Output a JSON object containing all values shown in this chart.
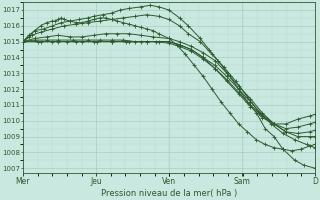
{
  "bg_color": "#c8e8e0",
  "grid_color_major": "#a0c8bc",
  "grid_color_minor": "#b8d8d0",
  "line_color": "#2d5a2d",
  "marker_color": "#2d5a2d",
  "ylabel_ticks": [
    1007,
    1008,
    1009,
    1010,
    1011,
    1012,
    1013,
    1014,
    1015,
    1016,
    1017
  ],
  "ylim": [
    1006.7,
    1017.5
  ],
  "xlim": [
    0.0,
    4.95
  ],
  "xlabel": "Pression niveau de la mer( hPa )",
  "xtick_labels": [
    "Mer",
    "Jeu",
    "Ven",
    "Sam",
    "D"
  ],
  "xtick_positions": [
    0.0,
    1.24,
    2.47,
    3.71,
    4.94
  ],
  "series": [
    {
      "x": [
        0.0,
        0.1,
        0.2,
        0.35,
        0.5,
        0.65,
        0.8,
        0.95,
        1.1,
        1.2,
        1.35,
        1.5,
        1.65,
        1.8,
        2.0,
        2.15,
        2.3,
        2.47,
        2.65,
        2.8,
        3.0,
        3.15,
        3.3,
        3.5,
        3.65,
        3.8,
        3.95,
        4.1,
        4.25,
        4.4,
        4.6,
        4.75,
        4.94
      ],
      "y": [
        1015.0,
        1015.3,
        1015.7,
        1015.8,
        1016.0,
        1016.2,
        1016.3,
        1016.4,
        1016.5,
        1016.6,
        1016.7,
        1016.8,
        1017.0,
        1017.1,
        1017.2,
        1017.3,
        1017.2,
        1017.0,
        1016.5,
        1016.0,
        1015.2,
        1014.5,
        1013.8,
        1012.8,
        1012.0,
        1011.2,
        1010.5,
        1009.5,
        1009.0,
        1008.2,
        1007.5,
        1007.2,
        1007.0
      ]
    },
    {
      "x": [
        0.0,
        0.15,
        0.3,
        0.5,
        0.7,
        0.9,
        1.1,
        1.3,
        1.5,
        1.7,
        1.9,
        2.1,
        2.3,
        2.47,
        2.65,
        2.8,
        3.0,
        3.2,
        3.4,
        3.6,
        3.8,
        4.0,
        4.2,
        4.4,
        4.6,
        4.8,
        4.94
      ],
      "y": [
        1015.0,
        1015.4,
        1015.6,
        1015.8,
        1016.0,
        1016.1,
        1016.2,
        1016.3,
        1016.4,
        1016.5,
        1016.6,
        1016.7,
        1016.6,
        1016.4,
        1016.0,
        1015.5,
        1015.0,
        1014.2,
        1013.4,
        1012.5,
        1011.5,
        1010.5,
        1009.8,
        1009.2,
        1008.8,
        1008.5,
        1008.3
      ]
    },
    {
      "x": [
        0.0,
        0.2,
        0.4,
        0.6,
        0.8,
        1.0,
        1.2,
        1.4,
        1.6,
        1.8,
        2.0,
        2.2,
        2.47,
        2.65,
        2.85,
        3.05,
        3.25,
        3.45,
        3.65,
        3.85,
        4.05,
        4.25,
        4.45,
        4.65,
        4.85,
        4.94
      ],
      "y": [
        1015.0,
        1015.2,
        1015.3,
        1015.4,
        1015.3,
        1015.3,
        1015.4,
        1015.5,
        1015.5,
        1015.5,
        1015.4,
        1015.3,
        1015.2,
        1015.0,
        1014.7,
        1014.3,
        1013.8,
        1013.0,
        1012.2,
        1011.4,
        1010.5,
        1009.8,
        1009.3,
        1009.0,
        1009.0,
        1009.0
      ]
    },
    {
      "x": [
        0.0,
        0.2,
        0.4,
        0.6,
        0.85,
        1.1,
        1.3,
        1.5,
        1.7,
        1.9,
        2.1,
        2.3,
        2.47,
        2.65,
        2.85,
        3.05,
        3.25,
        3.45,
        3.65,
        3.85,
        4.05,
        4.25,
        4.45,
        4.65,
        4.85,
        4.94
      ],
      "y": [
        1015.0,
        1015.1,
        1015.1,
        1015.1,
        1015.1,
        1015.1,
        1015.1,
        1015.1,
        1015.1,
        1015.0,
        1015.0,
        1015.0,
        1015.0,
        1014.8,
        1014.5,
        1014.0,
        1013.5,
        1012.8,
        1012.0,
        1011.2,
        1010.4,
        1009.8,
        1009.3,
        1009.2,
        1009.3,
        1009.4
      ]
    },
    {
      "x": [
        0.0,
        0.25,
        0.5,
        0.75,
        1.0,
        1.25,
        1.5,
        1.75,
        2.0,
        2.25,
        2.47,
        2.65,
        2.85,
        3.05,
        3.25,
        3.45,
        3.65,
        3.85,
        4.05,
        4.25,
        4.45,
        4.65,
        4.85,
        4.94
      ],
      "y": [
        1015.0,
        1015.0,
        1015.0,
        1015.0,
        1015.0,
        1015.0,
        1015.0,
        1015.0,
        1015.0,
        1015.0,
        1014.9,
        1014.7,
        1014.4,
        1013.9,
        1013.3,
        1012.6,
        1011.8,
        1011.0,
        1010.3,
        1009.8,
        1009.5,
        1009.6,
        1009.8,
        1009.9
      ]
    },
    {
      "x": [
        0.0,
        0.3,
        0.6,
        0.9,
        1.2,
        1.5,
        1.8,
        2.1,
        2.47,
        2.65,
        2.85,
        3.05,
        3.25,
        3.45,
        3.65,
        3.85,
        4.05,
        4.25,
        4.45,
        4.65,
        4.85,
        4.94
      ],
      "y": [
        1015.0,
        1015.0,
        1015.0,
        1015.0,
        1015.0,
        1015.0,
        1015.0,
        1015.0,
        1015.0,
        1014.8,
        1014.5,
        1014.0,
        1013.3,
        1012.5,
        1011.7,
        1010.9,
        1010.2,
        1009.8,
        1009.8,
        1010.1,
        1010.3,
        1010.4
      ]
    },
    {
      "x": [
        0.0,
        0.1,
        0.2,
        0.3,
        0.4,
        0.5,
        0.55,
        0.6,
        0.65,
        0.7,
        0.8,
        0.9,
        1.0,
        1.1,
        1.2,
        1.3,
        1.4,
        1.5,
        1.6,
        1.7,
        1.8,
        1.9,
        2.0,
        2.1,
        2.2,
        2.3,
        2.47,
        2.6,
        2.75,
        2.9,
        3.05,
        3.2,
        3.35,
        3.5,
        3.65,
        3.8,
        3.95,
        4.1,
        4.25,
        4.4,
        4.55,
        4.7,
        4.85,
        4.94
      ],
      "y": [
        1015.0,
        1015.4,
        1015.7,
        1016.0,
        1016.2,
        1016.3,
        1016.3,
        1016.4,
        1016.5,
        1016.4,
        1016.3,
        1016.2,
        1016.2,
        1016.3,
        1016.4,
        1016.5,
        1016.5,
        1016.4,
        1016.3,
        1016.2,
        1016.1,
        1016.0,
        1015.9,
        1015.8,
        1015.7,
        1015.5,
        1015.2,
        1014.8,
        1014.2,
        1013.5,
        1012.8,
        1012.0,
        1011.2,
        1010.5,
        1009.8,
        1009.3,
        1008.8,
        1008.5,
        1008.3,
        1008.2,
        1008.1,
        1008.2,
        1008.4,
        1008.5
      ]
    }
  ]
}
